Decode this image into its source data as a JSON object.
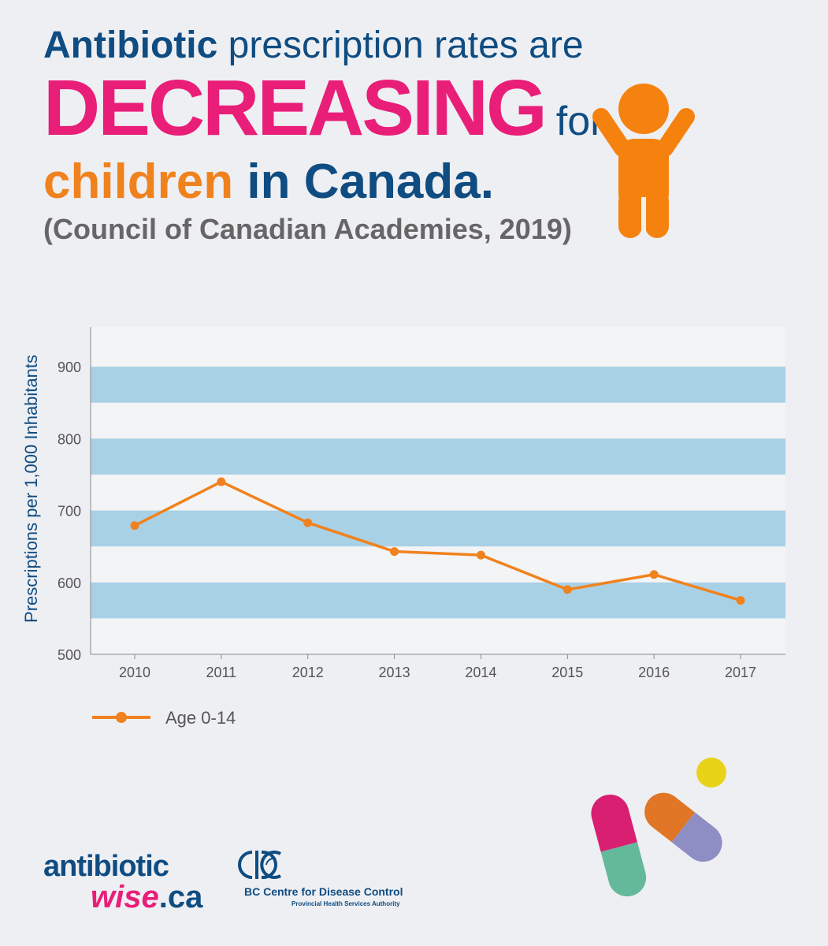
{
  "headline": {
    "line1_bold": "Antibiotic",
    "line1_rest": "prescription rates are",
    "line2_big": "DECREASING",
    "line2_rest": "for",
    "line3_orange": "children",
    "line3_rest": "in Canada."
  },
  "citation": "(Council of Canadian Academies, 2019)",
  "colors": {
    "navy": "#0f4c81",
    "pink": "#e91e78",
    "orange": "#f0821e",
    "band": "#a9d1e6",
    "background": "#eeeff3"
  },
  "chart_data": {
    "type": "line",
    "x": [
      "2010",
      "2011",
      "2012",
      "2013",
      "2014",
      "2015",
      "2016",
      "2017"
    ],
    "series": [
      {
        "name": "Age 0-14",
        "values": [
          679,
          740,
          683,
          643,
          638,
          590,
          611,
          575
        ],
        "color": "#f0821e"
      }
    ],
    "ylabel": "Prescriptions per 1,000 Inhabitants",
    "xlabel": "",
    "yticks": [
      500,
      600,
      700,
      800,
      900
    ],
    "ylim": [
      500,
      955
    ],
    "bands": [
      [
        550,
        600
      ],
      [
        650,
        700
      ],
      [
        750,
        800
      ],
      [
        850,
        900
      ]
    ],
    "legend_position": "bottom-left"
  },
  "logos": {
    "aw_top": "antibiotic",
    "aw_wise": "wise",
    "aw_ca": ".ca",
    "bc_name": "BC Centre for Disease Control",
    "bc_sub": "Provincial Health Services Authority"
  },
  "icons": [
    "child-icon",
    "capsule-icon",
    "pill-dot-icon",
    "bccdc-logo-icon"
  ]
}
